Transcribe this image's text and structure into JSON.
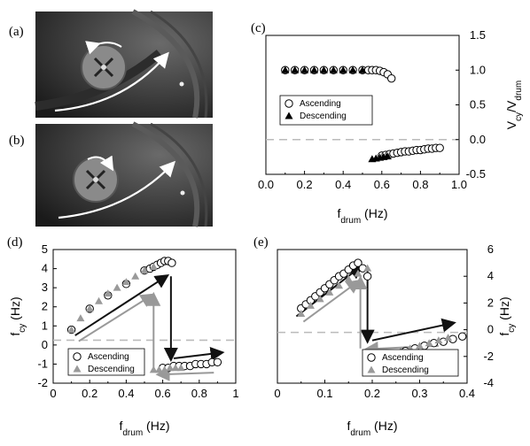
{
  "panels": {
    "a": {
      "label": "(a)"
    },
    "b": {
      "label": "(b)"
    },
    "c": {
      "label": "(c)"
    },
    "d": {
      "label": "(d)"
    },
    "e": {
      "label": "(e)"
    }
  },
  "colors": {
    "ascending": "#ffffff",
    "descending": "#000000",
    "grey_fill": "#a0a0a0",
    "grey_arrow": "#999999",
    "dashed": "#c0c0c0"
  },
  "chart_data": [
    {
      "panel": "(c)",
      "type": "scatter",
      "xlabel": "f_drum (Hz)",
      "ylabel": "V_cy/V_drum",
      "xlim": [
        0,
        1.0
      ],
      "ylim": [
        -0.5,
        1.5
      ],
      "xticks": [
        "0.0",
        "0.2",
        "0.4",
        "0.6",
        "0.8",
        "1.0"
      ],
      "yticks": [
        "-0.5",
        "0.0",
        "0.5",
        "1.0",
        "1.5"
      ],
      "legend": {
        "ascending": "Ascending",
        "descending": "Descending",
        "placement": "middle-left"
      },
      "reference_line_y": 0.0,
      "series": [
        {
          "name": "Ascending",
          "marker": "open-circle",
          "x": [
            0.1,
            0.15,
            0.2,
            0.25,
            0.3,
            0.35,
            0.4,
            0.45,
            0.5,
            0.53,
            0.55,
            0.57,
            0.59,
            0.61,
            0.63,
            0.65,
            0.6,
            0.62,
            0.64,
            0.66,
            0.68,
            0.7,
            0.72,
            0.74,
            0.76,
            0.78,
            0.8,
            0.82,
            0.84,
            0.86,
            0.88,
            0.9
          ],
          "y": [
            1.0,
            1.0,
            1.0,
            1.0,
            1.0,
            1.0,
            1.0,
            1.0,
            1.0,
            1.0,
            1.0,
            1.0,
            0.99,
            0.97,
            0.94,
            0.88,
            -0.23,
            -0.22,
            -0.21,
            -0.2,
            -0.19,
            -0.18,
            -0.17,
            -0.17,
            -0.16,
            -0.15,
            -0.15,
            -0.14,
            -0.13,
            -0.13,
            -0.12,
            -0.12
          ]
        },
        {
          "name": "Descending",
          "marker": "filled-triangle",
          "x": [
            0.1,
            0.15,
            0.2,
            0.25,
            0.3,
            0.35,
            0.4,
            0.45,
            0.5,
            0.55,
            0.57,
            0.59,
            0.61,
            0.63
          ],
          "y": [
            1.0,
            1.0,
            1.0,
            1.0,
            1.0,
            1.0,
            1.0,
            1.0,
            1.0,
            -0.28,
            -0.27,
            -0.26,
            -0.25,
            -0.24
          ]
        }
      ]
    },
    {
      "panel": "(d)",
      "type": "scatter",
      "xlabel": "f_drum (Hz)",
      "ylabel": "f_cy (Hz)",
      "xlim": [
        0,
        1.0
      ],
      "ylim": [
        -2,
        5
      ],
      "xticks": [
        "0",
        "0.2",
        "0.4",
        "0.6",
        "0.8",
        "1"
      ],
      "yticks": [
        "-2",
        "-1",
        "0",
        "1",
        "2",
        "3",
        "4",
        "5"
      ],
      "legend": {
        "ascending": "Ascending",
        "descending": "Descending",
        "placement": "bottom-left"
      },
      "reference_line_y": 0.25,
      "series": [
        {
          "name": "Ascending",
          "marker": "open-circle",
          "x": [
            0.1,
            0.2,
            0.3,
            0.4,
            0.5,
            0.53,
            0.55,
            0.57,
            0.59,
            0.61,
            0.63,
            0.65,
            0.6,
            0.63,
            0.66,
            0.69,
            0.72,
            0.75,
            0.78,
            0.81,
            0.84,
            0.87,
            0.9
          ],
          "y": [
            0.8,
            1.9,
            2.6,
            3.2,
            3.9,
            4.0,
            4.1,
            4.2,
            4.3,
            4.4,
            4.4,
            4.3,
            -1.2,
            -1.2,
            -1.1,
            -1.1,
            -1.1,
            -1.1,
            -1.0,
            -1.0,
            -1.0,
            -0.9,
            -0.9
          ]
        },
        {
          "name": "Descending",
          "marker": "grey-triangle",
          "x": [
            0.1,
            0.15,
            0.2,
            0.25,
            0.3,
            0.35,
            0.4,
            0.45,
            0.5,
            0.55,
            0.55,
            0.58,
            0.61,
            0.64,
            0.67,
            0.7
          ],
          "y": [
            0.8,
            1.4,
            1.9,
            2.3,
            2.7,
            3.0,
            3.3,
            3.6,
            3.9,
            4.1,
            -1.3,
            -1.3,
            -1.3,
            -1.2,
            -1.2,
            -1.2
          ]
        }
      ]
    },
    {
      "panel": "(e)",
      "type": "scatter",
      "xlabel": "f_drum (Hz)",
      "ylabel": "f_cy (Hz)",
      "xlim": [
        0,
        0.4
      ],
      "ylim": [
        -4,
        6
      ],
      "xticks": [
        "0",
        "0.1",
        "0.2",
        "0.3",
        "0.4"
      ],
      "yticks": [
        "-4",
        "-2",
        "0",
        "2",
        "4",
        "6"
      ],
      "legend": {
        "ascending": "Ascending",
        "descending": "Descending",
        "placement": "bottom-right"
      },
      "reference_line_y": -0.2,
      "series": [
        {
          "name": "Ascending",
          "marker": "open-circle",
          "x": [
            0.05,
            0.06,
            0.07,
            0.08,
            0.09,
            0.1,
            0.11,
            0.12,
            0.13,
            0.14,
            0.15,
            0.16,
            0.17,
            0.18,
            0.19,
            0.21,
            0.23,
            0.25,
            0.27,
            0.29,
            0.31,
            0.33,
            0.35,
            0.37,
            0.39
          ],
          "y": [
            1.6,
            1.9,
            2.2,
            2.5,
            2.8,
            3.1,
            3.4,
            3.7,
            4.0,
            4.2,
            4.5,
            4.8,
            5.0,
            4.6,
            4.0,
            -2.2,
            -2.0,
            -1.8,
            -1.6,
            -1.4,
            -1.2,
            -1.0,
            -0.9,
            -0.7,
            -0.5
          ]
        },
        {
          "name": "Descending",
          "marker": "grey-triangle",
          "x": [
            0.05,
            0.07,
            0.09,
            0.11,
            0.13,
            0.15,
            0.17,
            0.19,
            0.2,
            0.22,
            0.24,
            0.26,
            0.28,
            0.3,
            0.32,
            0.34,
            0.36
          ],
          "y": [
            1.2,
            1.8,
            2.3,
            2.8,
            3.3,
            3.8,
            4.2,
            4.6,
            -2.1,
            -2.0,
            -1.8,
            -1.6,
            -1.4,
            -1.2,
            -1.0,
            -0.8,
            -0.6
          ]
        }
      ]
    }
  ]
}
